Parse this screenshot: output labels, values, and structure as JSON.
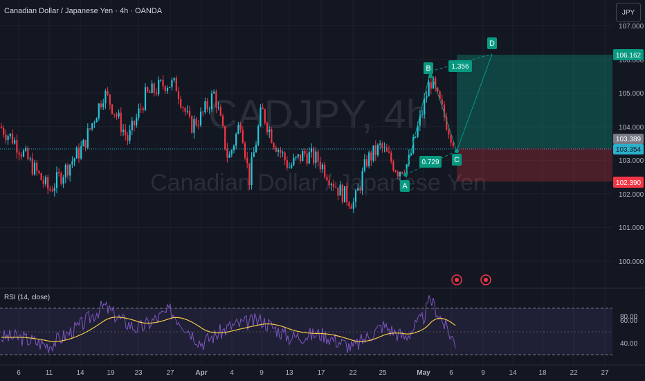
{
  "header": {
    "title": "Canadian Dollar / Japanese Yen · 4h · OANDA",
    "currency_button": "JPY"
  },
  "watermark": {
    "symbol": "CADJPY, 4h",
    "name": "Canadian Dollar / Japanese Yen"
  },
  "price_axis": {
    "ticks": [
      "107.000",
      "106.000",
      "105.000",
      "104.000",
      "103.000",
      "102.000",
      "101.000",
      "100.000"
    ],
    "tick_values": [
      107,
      106,
      105,
      104,
      103,
      102,
      101,
      100
    ],
    "labels": {
      "target": "106.162",
      "upper": "103.389",
      "current": "103.354",
      "stop": "102.390"
    },
    "label_values": {
      "target": 106.162,
      "upper": 103.389,
      "current": 103.354,
      "stop": 102.39
    },
    "colors": {
      "target": "#089981",
      "upper": "#787b86",
      "current": "#2cb0cc",
      "stop": "#f23645"
    }
  },
  "rsi": {
    "title": "RSI (14, close)",
    "ticks": [
      "80.00",
      "60.00",
      "40.00"
    ],
    "tick_values": [
      80,
      60,
      40
    ],
    "upper_band": 70,
    "lower_band": 30
  },
  "time_axis": {
    "labels": [
      "6",
      "11",
      "14",
      "19",
      "23",
      "27",
      "Apr",
      "4",
      "9",
      "13",
      "17",
      "22",
      "25",
      "May",
      "6",
      "9",
      "14",
      "18",
      "22",
      "27"
    ],
    "bold": [
      "Apr",
      "May"
    ]
  },
  "pattern": {
    "points": {
      "A": "A",
      "B": "B",
      "C": "C",
      "D": "D"
    },
    "ratios": {
      "bc": "0.729",
      "cd": "1.356"
    }
  },
  "chart_data": {
    "type": "candlestick",
    "symbol": "CADJPY",
    "timeframe": "4h",
    "source": "OANDA",
    "ylim": [
      99.5,
      107.3
    ],
    "close_path": [
      {
        "x": "6",
        "y": 104.0
      },
      {
        "x": "8",
        "y": 103.6
      },
      {
        "x": "11",
        "y": 102.1
      },
      {
        "x": "14",
        "y": 103.4
      },
      {
        "x": "17",
        "y": 105.0
      },
      {
        "x": "19",
        "y": 104.7
      },
      {
        "x": "21",
        "y": 103.6
      },
      {
        "x": "23",
        "y": 104.9
      },
      {
        "x": "25",
        "y": 105.3
      },
      {
        "x": "27",
        "y": 105.2
      },
      {
        "x": "29",
        "y": 104.0
      },
      {
        "x": "Apr",
        "y": 104.3
      },
      {
        "x": "2",
        "y": 105.0
      },
      {
        "x": "4",
        "y": 103.0
      },
      {
        "x": "6",
        "y": 104.2
      },
      {
        "x": "8",
        "y": 102.4
      },
      {
        "x": "9",
        "y": 104.5
      },
      {
        "x": "11",
        "y": 103.6
      },
      {
        "x": "13",
        "y": 102.8
      },
      {
        "x": "15",
        "y": 103.2
      },
      {
        "x": "17",
        "y": 103.0
      },
      {
        "x": "20",
        "y": 102.1
      },
      {
        "x": "22",
        "y": 101.7
      },
      {
        "x": "24",
        "y": 103.0
      },
      {
        "x": "25",
        "y": 103.4
      },
      {
        "x": "27",
        "y": 102.7
      },
      {
        "x": "29",
        "y": 102.9
      },
      {
        "x": "May",
        "y": 104.6
      },
      {
        "x": "2",
        "y": 105.4
      },
      {
        "x": "4",
        "y": 104.4
      },
      {
        "x": "6",
        "y": 103.354
      }
    ],
    "pattern_points": [
      {
        "label": "A",
        "x": "29",
        "y": 102.6
      },
      {
        "label": "B",
        "x": "May 1",
        "y": 105.4
      },
      {
        "label": "C",
        "x": "6",
        "y": 103.354
      },
      {
        "label": "D",
        "x": "9",
        "y": 106.162
      }
    ],
    "position": {
      "entry": 103.389,
      "target": 106.162,
      "stop": 102.39
    },
    "rsi_series": [
      {
        "x": "6",
        "y": 45
      },
      {
        "x": "11",
        "y": 38
      },
      {
        "x": "14",
        "y": 55
      },
      {
        "x": "17",
        "y": 72
      },
      {
        "x": "19",
        "y": 60
      },
      {
        "x": "23",
        "y": 52
      },
      {
        "x": "27",
        "y": 68
      },
      {
        "x": "Apr",
        "y": 40
      },
      {
        "x": "4",
        "y": 55
      },
      {
        "x": "9",
        "y": 60
      },
      {
        "x": "13",
        "y": 45
      },
      {
        "x": "17",
        "y": 48
      },
      {
        "x": "22",
        "y": 36
      },
      {
        "x": "25",
        "y": 55
      },
      {
        "x": "27",
        "y": 45
      },
      {
        "x": "May",
        "y": 62
      },
      {
        "x": "2",
        "y": 78
      },
      {
        "x": "4",
        "y": 58
      },
      {
        "x": "6",
        "y": 40
      }
    ],
    "rsi_ylim": [
      25,
      88
    ]
  }
}
